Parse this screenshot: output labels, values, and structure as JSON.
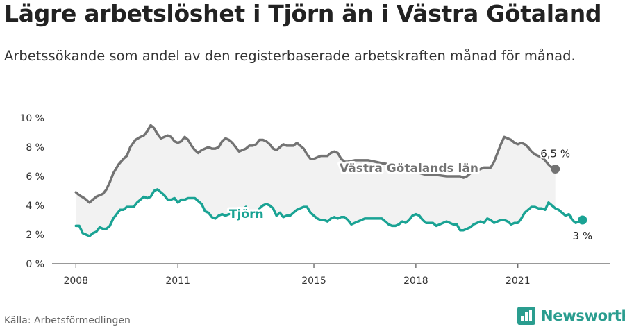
{
  "title": "Lägre arbetslöshet i Tjörn än i Västra Götaland",
  "subtitle": "Arbetssökande som andel av den registerbaserade arbetskraften månad för månad.",
  "source": "Källa: Arbetsförmedlingen",
  "brand": "Newsworthy",
  "colors": {
    "vastra": "#737373",
    "tjorn": "#1aa394",
    "band": "#f2f2f2",
    "brand": "#2a9d8f"
  },
  "chart_data": {
    "type": "line",
    "ylim": [
      0,
      10
    ],
    "yticks": [
      {
        "value": 0,
        "label": "0 %"
      },
      {
        "value": 2,
        "label": "2 %"
      },
      {
        "value": 4,
        "label": "4 %"
      },
      {
        "value": 6,
        "label": "6 %"
      },
      {
        "value": 8,
        "label": "8 %"
      },
      {
        "value": 10,
        "label": "10 %"
      }
    ],
    "xticks": [
      {
        "value": 2008,
        "label": "2008"
      },
      {
        "value": 2011,
        "label": "2011"
      },
      {
        "value": 2015,
        "label": "2015"
      },
      {
        "value": 2018,
        "label": "2018"
      },
      {
        "value": 2021,
        "label": "2021"
      }
    ],
    "xlim": [
      2007.3,
      2023.7
    ],
    "series": [
      {
        "name": "Västra Götalands län",
        "end_label": "6,5 %",
        "points": [
          [
            2008.0,
            4.9
          ],
          [
            2008.1,
            4.7
          ],
          [
            2008.25,
            4.5
          ],
          [
            2008.4,
            4.2
          ],
          [
            2008.5,
            4.4
          ],
          [
            2008.6,
            4.6
          ],
          [
            2008.8,
            4.8
          ],
          [
            2008.9,
            5.1
          ],
          [
            2009.0,
            5.6
          ],
          [
            2009.1,
            6.2
          ],
          [
            2009.25,
            6.8
          ],
          [
            2009.4,
            7.2
          ],
          [
            2009.5,
            7.4
          ],
          [
            2009.6,
            8.0
          ],
          [
            2009.75,
            8.5
          ],
          [
            2009.9,
            8.7
          ],
          [
            2010.0,
            8.8
          ],
          [
            2010.1,
            9.1
          ],
          [
            2010.2,
            9.5
          ],
          [
            2010.3,
            9.3
          ],
          [
            2010.4,
            8.9
          ],
          [
            2010.5,
            8.6
          ],
          [
            2010.6,
            8.7
          ],
          [
            2010.7,
            8.8
          ],
          [
            2010.8,
            8.7
          ],
          [
            2010.9,
            8.4
          ],
          [
            2011.0,
            8.3
          ],
          [
            2011.1,
            8.4
          ],
          [
            2011.2,
            8.7
          ],
          [
            2011.3,
            8.5
          ],
          [
            2011.4,
            8.1
          ],
          [
            2011.5,
            7.8
          ],
          [
            2011.6,
            7.6
          ],
          [
            2011.7,
            7.8
          ],
          [
            2011.8,
            7.9
          ],
          [
            2011.9,
            8.0
          ],
          [
            2012.0,
            7.9
          ],
          [
            2012.1,
            7.9
          ],
          [
            2012.2,
            8.0
          ],
          [
            2012.3,
            8.4
          ],
          [
            2012.4,
            8.6
          ],
          [
            2012.5,
            8.5
          ],
          [
            2012.6,
            8.3
          ],
          [
            2012.7,
            8.0
          ],
          [
            2012.8,
            7.7
          ],
          [
            2012.9,
            7.8
          ],
          [
            2013.0,
            7.9
          ],
          [
            2013.1,
            8.1
          ],
          [
            2013.2,
            8.1
          ],
          [
            2013.3,
            8.2
          ],
          [
            2013.4,
            8.5
          ],
          [
            2013.5,
            8.5
          ],
          [
            2013.6,
            8.4
          ],
          [
            2013.7,
            8.2
          ],
          [
            2013.8,
            7.9
          ],
          [
            2013.9,
            7.8
          ],
          [
            2014.0,
            8.0
          ],
          [
            2014.1,
            8.2
          ],
          [
            2014.2,
            8.1
          ],
          [
            2014.3,
            8.1
          ],
          [
            2014.4,
            8.1
          ],
          [
            2014.5,
            8.3
          ],
          [
            2014.6,
            8.1
          ],
          [
            2014.7,
            7.9
          ],
          [
            2014.8,
            7.5
          ],
          [
            2014.9,
            7.2
          ],
          [
            2015.0,
            7.2
          ],
          [
            2015.1,
            7.3
          ],
          [
            2015.2,
            7.4
          ],
          [
            2015.3,
            7.4
          ],
          [
            2015.4,
            7.4
          ],
          [
            2015.5,
            7.6
          ],
          [
            2015.6,
            7.7
          ],
          [
            2015.7,
            7.6
          ],
          [
            2015.8,
            7.2
          ],
          [
            2015.9,
            7.0
          ],
          [
            2016.0,
            7.0
          ],
          [
            2016.2,
            7.1
          ],
          [
            2016.4,
            7.1
          ],
          [
            2016.6,
            7.1
          ],
          [
            2016.8,
            7.0
          ],
          [
            2017.0,
            6.9
          ],
          [
            2017.3,
            6.8
          ],
          [
            2017.6,
            6.6
          ],
          [
            2018.0,
            6.3
          ],
          [
            2018.3,
            6.1
          ],
          [
            2018.6,
            6.1
          ],
          [
            2018.9,
            6.0
          ],
          [
            2019.1,
            6.0
          ],
          [
            2019.3,
            6.0
          ],
          [
            2019.4,
            5.9
          ],
          [
            2019.5,
            6.0
          ],
          [
            2019.6,
            6.2
          ],
          [
            2019.7,
            6.3
          ],
          [
            2019.8,
            6.4
          ],
          [
            2019.9,
            6.5
          ],
          [
            2020.0,
            6.6
          ],
          [
            2020.1,
            6.6
          ],
          [
            2020.2,
            6.6
          ],
          [
            2020.3,
            7.0
          ],
          [
            2020.4,
            7.6
          ],
          [
            2020.5,
            8.2
          ],
          [
            2020.6,
            8.7
          ],
          [
            2020.7,
            8.6
          ],
          [
            2020.8,
            8.5
          ],
          [
            2020.9,
            8.3
          ],
          [
            2021.0,
            8.2
          ],
          [
            2021.1,
            8.3
          ],
          [
            2021.2,
            8.2
          ],
          [
            2021.3,
            8.0
          ],
          [
            2021.4,
            7.7
          ],
          [
            2021.5,
            7.5
          ],
          [
            2021.6,
            7.4
          ],
          [
            2021.7,
            7.3
          ],
          [
            2021.8,
            7.1
          ],
          [
            2021.9,
            6.8
          ],
          [
            2022.0,
            6.6
          ],
          [
            2022.1,
            6.5
          ]
        ]
      },
      {
        "name": "Tjörn",
        "end_label": "3 %",
        "points": [
          [
            2008.0,
            2.6
          ],
          [
            2008.1,
            2.6
          ],
          [
            2008.2,
            2.1
          ],
          [
            2008.3,
            2.0
          ],
          [
            2008.4,
            1.9
          ],
          [
            2008.5,
            2.1
          ],
          [
            2008.6,
            2.2
          ],
          [
            2008.7,
            2.5
          ],
          [
            2008.8,
            2.4
          ],
          [
            2008.9,
            2.4
          ],
          [
            2009.0,
            2.6
          ],
          [
            2009.1,
            3.1
          ],
          [
            2009.2,
            3.4
          ],
          [
            2009.3,
            3.7
          ],
          [
            2009.4,
            3.7
          ],
          [
            2009.5,
            3.9
          ],
          [
            2009.6,
            3.9
          ],
          [
            2009.7,
            3.9
          ],
          [
            2009.8,
            4.2
          ],
          [
            2009.9,
            4.4
          ],
          [
            2010.0,
            4.6
          ],
          [
            2010.1,
            4.5
          ],
          [
            2010.2,
            4.6
          ],
          [
            2010.3,
            5.0
          ],
          [
            2010.4,
            5.1
          ],
          [
            2010.5,
            4.9
          ],
          [
            2010.6,
            4.7
          ],
          [
            2010.7,
            4.4
          ],
          [
            2010.8,
            4.4
          ],
          [
            2010.9,
            4.5
          ],
          [
            2011.0,
            4.2
          ],
          [
            2011.1,
            4.4
          ],
          [
            2011.2,
            4.4
          ],
          [
            2011.3,
            4.5
          ],
          [
            2011.4,
            4.5
          ],
          [
            2011.5,
            4.5
          ],
          [
            2011.6,
            4.3
          ],
          [
            2011.7,
            4.1
          ],
          [
            2011.8,
            3.6
          ],
          [
            2011.9,
            3.5
          ],
          [
            2012.0,
            3.2
          ],
          [
            2012.1,
            3.1
          ],
          [
            2012.2,
            3.3
          ],
          [
            2012.3,
            3.4
          ],
          [
            2012.4,
            3.3
          ],
          [
            2012.5,
            3.4
          ],
          [
            2012.6,
            3.5
          ],
          [
            2012.7,
            3.6
          ],
          [
            2012.8,
            3.8
          ],
          [
            2012.9,
            3.7
          ],
          [
            2013.0,
            3.9
          ],
          [
            2013.1,
            3.5
          ],
          [
            2013.2,
            3.5
          ],
          [
            2013.3,
            3.4
          ],
          [
            2013.4,
            3.8
          ],
          [
            2013.5,
            4.0
          ],
          [
            2013.6,
            4.1
          ],
          [
            2013.7,
            4.0
          ],
          [
            2013.8,
            3.8
          ],
          [
            2013.9,
            3.3
          ],
          [
            2014.0,
            3.5
          ],
          [
            2014.1,
            3.2
          ],
          [
            2014.2,
            3.3
          ],
          [
            2014.3,
            3.3
          ],
          [
            2014.4,
            3.5
          ],
          [
            2014.5,
            3.7
          ],
          [
            2014.6,
            3.8
          ],
          [
            2014.7,
            3.9
          ],
          [
            2014.8,
            3.9
          ],
          [
            2014.9,
            3.5
          ],
          [
            2015.0,
            3.3
          ],
          [
            2015.1,
            3.1
          ],
          [
            2015.2,
            3.0
          ],
          [
            2015.3,
            3.0
          ],
          [
            2015.4,
            2.9
          ],
          [
            2015.5,
            3.1
          ],
          [
            2015.6,
            3.2
          ],
          [
            2015.7,
            3.1
          ],
          [
            2015.8,
            3.2
          ],
          [
            2015.9,
            3.2
          ],
          [
            2016.0,
            3.0
          ],
          [
            2016.1,
            2.7
          ],
          [
            2016.2,
            2.8
          ],
          [
            2016.3,
            2.9
          ],
          [
            2016.4,
            3.0
          ],
          [
            2016.5,
            3.1
          ],
          [
            2016.6,
            3.1
          ],
          [
            2016.7,
            3.1
          ],
          [
            2016.8,
            3.1
          ],
          [
            2016.9,
            3.1
          ],
          [
            2017.0,
            3.1
          ],
          [
            2017.1,
            2.9
          ],
          [
            2017.2,
            2.7
          ],
          [
            2017.3,
            2.6
          ],
          [
            2017.4,
            2.6
          ],
          [
            2017.5,
            2.7
          ],
          [
            2017.6,
            2.9
          ],
          [
            2017.7,
            2.8
          ],
          [
            2017.8,
            3.0
          ],
          [
            2017.9,
            3.3
          ],
          [
            2018.0,
            3.4
          ],
          [
            2018.1,
            3.3
          ],
          [
            2018.2,
            3.0
          ],
          [
            2018.3,
            2.8
          ],
          [
            2018.4,
            2.8
          ],
          [
            2018.5,
            2.8
          ],
          [
            2018.6,
            2.6
          ],
          [
            2018.7,
            2.7
          ],
          [
            2018.8,
            2.8
          ],
          [
            2018.9,
            2.9
          ],
          [
            2019.0,
            2.8
          ],
          [
            2019.1,
            2.7
          ],
          [
            2019.2,
            2.7
          ],
          [
            2019.3,
            2.3
          ],
          [
            2019.4,
            2.3
          ],
          [
            2019.5,
            2.4
          ],
          [
            2019.6,
            2.5
          ],
          [
            2019.7,
            2.7
          ],
          [
            2019.8,
            2.8
          ],
          [
            2019.9,
            2.9
          ],
          [
            2020.0,
            2.8
          ],
          [
            2020.1,
            3.1
          ],
          [
            2020.2,
            3.0
          ],
          [
            2020.3,
            2.8
          ],
          [
            2020.4,
            2.9
          ],
          [
            2020.5,
            3.0
          ],
          [
            2020.6,
            3.0
          ],
          [
            2020.7,
            2.9
          ],
          [
            2020.8,
            2.7
          ],
          [
            2020.9,
            2.8
          ],
          [
            2021.0,
            2.8
          ],
          [
            2021.1,
            3.1
          ],
          [
            2021.2,
            3.5
          ],
          [
            2021.3,
            3.7
          ],
          [
            2021.4,
            3.9
          ],
          [
            2021.5,
            3.9
          ],
          [
            2021.6,
            3.8
          ],
          [
            2021.7,
            3.8
          ],
          [
            2021.8,
            3.7
          ],
          [
            2021.9,
            4.2
          ],
          [
            2022.0,
            4.0
          ],
          [
            2022.1,
            3.8
          ],
          [
            2022.2,
            3.7
          ],
          [
            2022.3,
            3.5
          ],
          [
            2022.4,
            3.3
          ],
          [
            2022.5,
            3.4
          ],
          [
            2022.6,
            3.0
          ],
          [
            2022.7,
            2.8
          ],
          [
            2022.8,
            2.9
          ],
          [
            2022.9,
            3.0
          ]
        ]
      }
    ]
  }
}
